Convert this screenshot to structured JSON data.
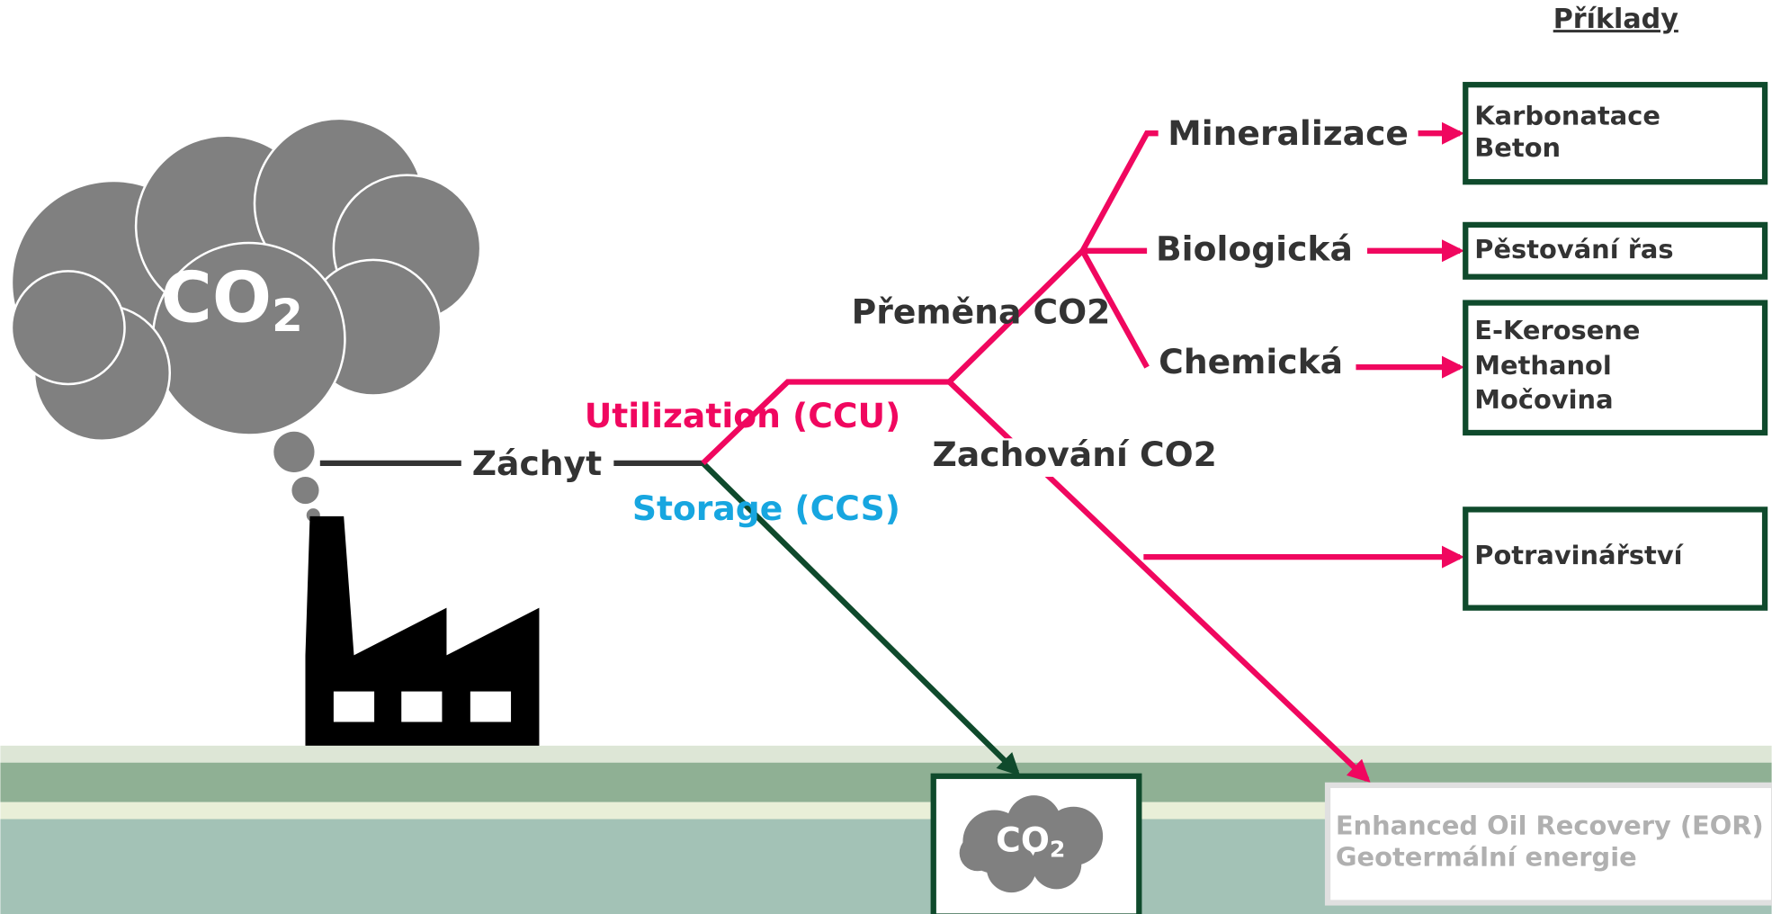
{
  "header": {
    "title": "Příklady"
  },
  "source": {
    "cloud_label": {
      "main": "CO",
      "sub": "2"
    }
  },
  "capture": {
    "label": "Záchyt"
  },
  "branches": {
    "utilization": "Utilization (CCU)",
    "storage": "Storage (CCS)"
  },
  "utilization": {
    "conversion": "Přeměna CO2",
    "preservation": "Zachování CO2"
  },
  "conversion_types": [
    "Mineralizace",
    "Biologická",
    "Chemická"
  ],
  "examples": [
    {
      "lines": [
        "Karbonatace",
        "Beton"
      ]
    },
    {
      "lines": [
        "Pěstování řas"
      ]
    },
    {
      "lines": [
        "E-Kerosene",
        "Methanol",
        "Močovina"
      ]
    },
    {
      "lines": [
        "Potravinářství"
      ]
    },
    {
      "lines": [
        "Enhanced Oil Recovery (EOR)",
        "Geotermální energie"
      ]
    }
  ],
  "storage": {
    "cloud_label": {
      "main": "CO",
      "sub": "2"
    }
  }
}
